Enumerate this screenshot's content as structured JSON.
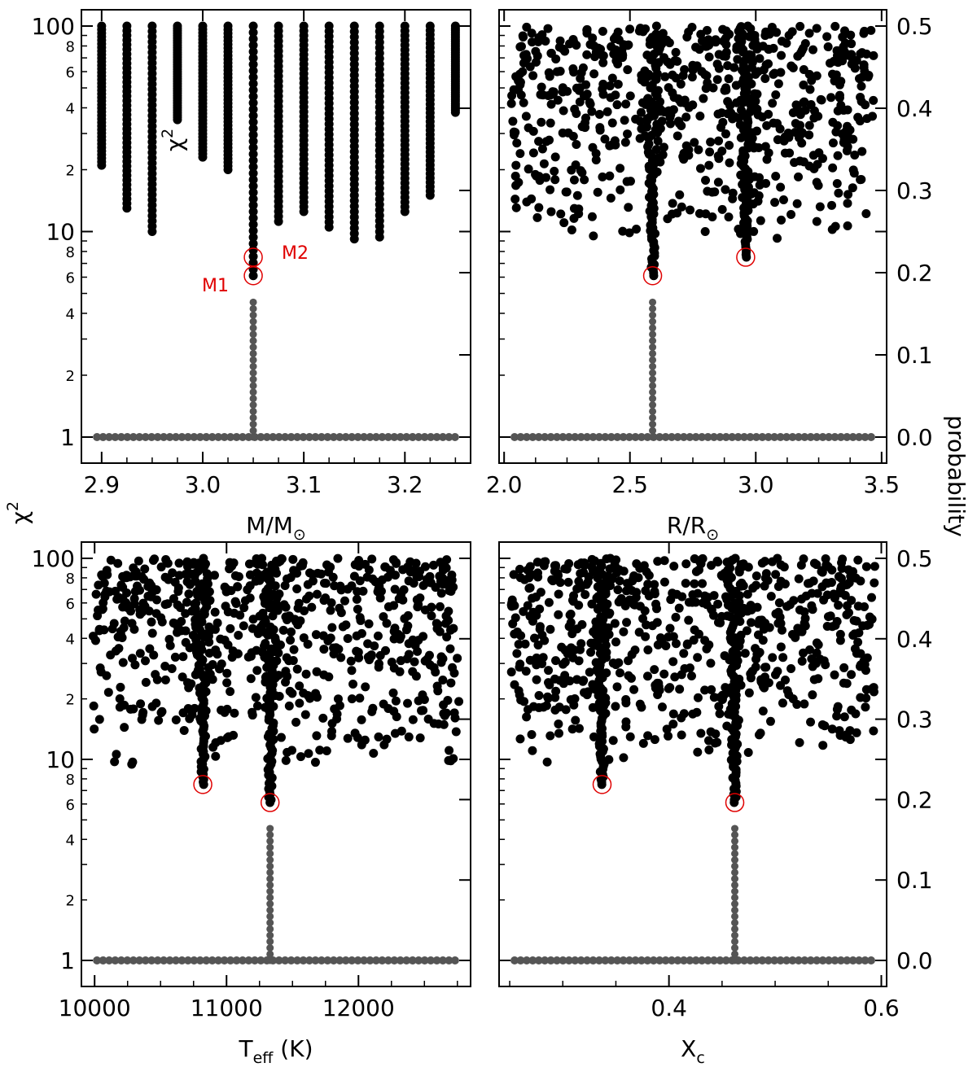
{
  "shared_labels": {
    "chi2": "χ",
    "chi2_exp": "2",
    "probability": "probability"
  },
  "panel_chi2_label": {
    "base": "χ",
    "exp": "2"
  },
  "annotations": {
    "m1": "M1",
    "m2": "M2"
  },
  "colors": {
    "chi2_points": "#000000",
    "probability_points": "#555555",
    "marker": "#e00000"
  },
  "chart_data": [
    {
      "type": "scatter",
      "panel": "top-left",
      "xlabel": "M/M",
      "xlabel_symbol": "⊙",
      "xlim": [
        2.88,
        3.265
      ],
      "xticks": [
        "2.9",
        "3.0",
        "3.1",
        "3.2"
      ],
      "xtick_values": [
        2.9,
        3.0,
        3.1,
        3.2
      ],
      "ylim_chi2": [
        0.88,
        120
      ],
      "y_scale": "log",
      "ylim_probability": [
        0,
        0.5
      ],
      "chi2_columns": [
        {
          "x": 2.9,
          "ymin": 21,
          "ymax": 100
        },
        {
          "x": 2.925,
          "ymin": 13,
          "ymax": 100
        },
        {
          "x": 2.95,
          "ymin": 10,
          "ymax": 100
        },
        {
          "x": 2.975,
          "ymin": 35,
          "ymax": 100
        },
        {
          "x": 3.0,
          "ymin": 23,
          "ymax": 100
        },
        {
          "x": 3.025,
          "ymin": 20,
          "ymax": 100
        },
        {
          "x": 3.05,
          "ymin": 6.1,
          "ymax": 100
        },
        {
          "x": 3.075,
          "ymin": 11.2,
          "ymax": 100
        },
        {
          "x": 3.1,
          "ymin": 12.5,
          "ymax": 100
        },
        {
          "x": 3.125,
          "ymin": 10.5,
          "ymax": 100
        },
        {
          "x": 3.15,
          "ymin": 9.2,
          "ymax": 100
        },
        {
          "x": 3.175,
          "ymin": 9.4,
          "ymax": 100
        },
        {
          "x": 3.2,
          "ymin": 12.5,
          "ymax": 100
        },
        {
          "x": 3.225,
          "ymin": 15,
          "ymax": 100
        },
        {
          "x": 3.25,
          "ymin": 38,
          "ymax": 100
        }
      ],
      "probability_peak": {
        "x": 3.05,
        "max": 0.2
      },
      "markers": [
        {
          "name": "M1",
          "x": 3.05,
          "y": 6.1
        },
        {
          "name": "M2",
          "x": 3.05,
          "y": 7.5
        }
      ]
    },
    {
      "type": "scatter",
      "panel": "top-right",
      "xlabel": "R/R",
      "xlabel_symbol": "⊙",
      "xlim": [
        1.98,
        3.52
      ],
      "xticks": [
        "2.0",
        "2.5",
        "3.0",
        "3.5"
      ],
      "xtick_values": [
        2.0,
        2.5,
        3.0,
        3.5
      ],
      "ylim_chi2": [
        0.88,
        120
      ],
      "y_scale": "log",
      "ylim_probability": [
        0,
        0.5
      ],
      "yticks_probability": [
        "0.0",
        "0.1",
        "0.2",
        "0.3",
        "0.4",
        "0.5"
      ],
      "valleys": [
        {
          "x": 2.59,
          "min": 6.1
        },
        {
          "x": 2.96,
          "min": 7.5
        }
      ],
      "probability_peak": {
        "x": 2.59,
        "max": 0.2
      },
      "markers": [
        {
          "x": 2.59,
          "y": 6.1
        },
        {
          "x": 2.96,
          "y": 7.5
        }
      ]
    },
    {
      "type": "scatter",
      "panel": "bottom-left",
      "xlabel": "T",
      "xlabel_sub": "eff",
      "xlabel_unit": " (K)",
      "xlim": [
        9900,
        12850
      ],
      "xticks": [
        "10000",
        "11000",
        "12000"
      ],
      "xtick_values": [
        10000,
        11000,
        12000
      ],
      "ylim_chi2": [
        0.88,
        120
      ],
      "y_scale": "log",
      "ylim_probability": [
        0,
        0.5
      ],
      "valleys": [
        {
          "x": 10820,
          "min": 7.5
        },
        {
          "x": 11330,
          "min": 6.1
        }
      ],
      "probability_peak": {
        "x": 11330,
        "max": 0.2
      },
      "markers": [
        {
          "x": 10820,
          "y": 7.5
        },
        {
          "x": 11330,
          "y": 6.1
        }
      ]
    },
    {
      "type": "scatter",
      "panel": "bottom-right",
      "xlabel": "X",
      "xlabel_sub": "c",
      "xlim": [
        0.24,
        0.605
      ],
      "xticks": [
        "0.4",
        "0.6"
      ],
      "xtick_values": [
        0.4,
        0.6
      ],
      "ylim_chi2": [
        0.88,
        120
      ],
      "y_scale": "log",
      "ylim_probability": [
        0,
        0.5
      ],
      "yticks_probability": [
        "0.0",
        "0.1",
        "0.2",
        "0.3",
        "0.4",
        "0.5"
      ],
      "valleys": [
        {
          "x": 0.337,
          "min": 7.5
        },
        {
          "x": 0.462,
          "min": 6.1
        }
      ],
      "probability_peak": {
        "x": 0.462,
        "max": 0.2
      },
      "markers": [
        {
          "x": 0.337,
          "y": 7.5
        },
        {
          "x": 0.462,
          "y": 6.1
        }
      ]
    }
  ]
}
